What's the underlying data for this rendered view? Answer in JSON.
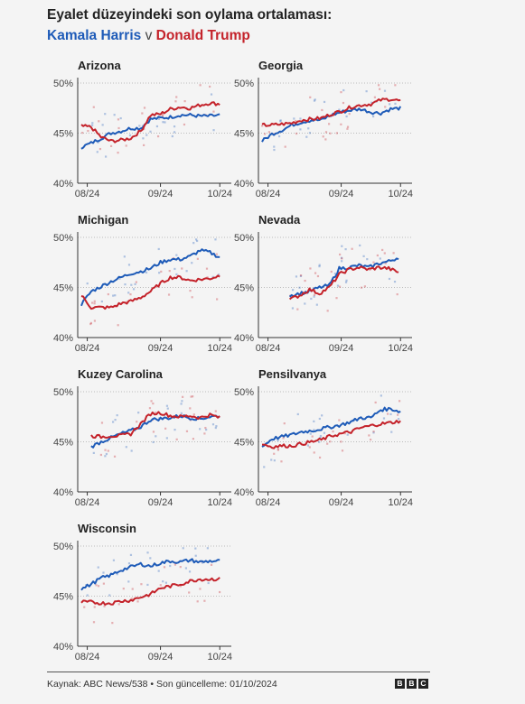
{
  "header": {
    "title": "Eyalet düzeyindeki son oylama ortalaması:",
    "harris_label": "Kamala Harris",
    "versus": "v",
    "trump_label": "Donald Trump"
  },
  "colors": {
    "harris": "#1e5bb8",
    "trump": "#c4222a"
  },
  "footer": {
    "source": "Kaynak: ABC News/538 • Son güncelleme: 01/10/2024",
    "logo_letters": [
      "B",
      "B",
      "C"
    ]
  },
  "chart_data": [
    {
      "type": "line",
      "title": "Arizona",
      "ylim": [
        40,
        50
      ],
      "yticks": [
        "50%",
        "45%",
        "40%"
      ],
      "xticks": [
        "08/24",
        "09/24",
        "10/24"
      ],
      "series": [
        {
          "name": "Kamala Harris",
          "x": [
            0,
            5,
            10,
            15,
            20,
            25,
            30,
            35,
            40,
            45,
            50,
            55,
            60,
            65,
            70
          ],
          "y": [
            43.6,
            44.0,
            44.5,
            45.0,
            45.2,
            45.5,
            45.5,
            46.4,
            46.5,
            46.6,
            46.8,
            46.8,
            46.7,
            46.7,
            46.8
          ]
        },
        {
          "name": "Donald Trump",
          "x": [
            0,
            5,
            10,
            15,
            20,
            25,
            30,
            35,
            40,
            45,
            50,
            55,
            60,
            65,
            70
          ],
          "y": [
            45.7,
            45.6,
            44.6,
            44.2,
            44.3,
            44.5,
            45.2,
            46.8,
            46.9,
            47.4,
            47.6,
            47.5,
            47.8,
            48.0,
            47.9
          ]
        }
      ]
    },
    {
      "type": "line",
      "title": "Georgia",
      "ylim": [
        40,
        50
      ],
      "yticks": [
        "50%",
        "45%",
        "40%"
      ],
      "xticks": [
        "08/24",
        "09/24",
        "10/24"
      ],
      "series": [
        {
          "name": "Kamala Harris",
          "x": [
            0,
            5,
            10,
            15,
            20,
            25,
            30,
            35,
            40,
            45,
            50,
            55,
            60,
            65,
            70
          ],
          "y": [
            44.2,
            44.9,
            45.3,
            45.8,
            46.1,
            46.3,
            46.3,
            46.8,
            47.1,
            47.3,
            47.4,
            47.1,
            47.0,
            47.4,
            47.5
          ]
        },
        {
          "name": "Donald Trump",
          "x": [
            0,
            5,
            10,
            15,
            20,
            25,
            30,
            35,
            40,
            45,
            50,
            55,
            60,
            65,
            70
          ],
          "y": [
            45.8,
            45.8,
            45.9,
            46.0,
            46.3,
            46.4,
            46.5,
            46.9,
            47.2,
            47.6,
            47.8,
            47.9,
            48.3,
            48.4,
            48.2
          ]
        }
      ]
    },
    {
      "type": "line",
      "title": "Michigan",
      "ylim": [
        40,
        50
      ],
      "yticks": [
        "50%",
        "45%",
        "40%"
      ],
      "xticks": [
        "08/24",
        "09/24",
        "10/24"
      ],
      "series": [
        {
          "name": "Kamala Harris",
          "x": [
            0,
            5,
            10,
            15,
            20,
            25,
            30,
            35,
            40,
            45,
            50,
            55,
            60,
            65,
            70
          ],
          "y": [
            43.3,
            44.6,
            45.1,
            45.6,
            46.0,
            46.4,
            46.6,
            46.9,
            47.5,
            47.8,
            47.8,
            48.1,
            48.7,
            48.5,
            48.0
          ]
        },
        {
          "name": "Donald Trump",
          "x": [
            0,
            5,
            10,
            15,
            20,
            25,
            30,
            35,
            40,
            45,
            50,
            55,
            60,
            65,
            70
          ],
          "y": [
            44.2,
            43.0,
            43.0,
            43.0,
            43.4,
            43.6,
            44.0,
            44.6,
            45.4,
            46.0,
            46.0,
            45.7,
            45.8,
            45.9,
            46.2
          ]
        }
      ]
    },
    {
      "type": "line",
      "title": "Nevada",
      "ylim": [
        40,
        50
      ],
      "yticks": [
        "50%",
        "45%",
        "40%"
      ],
      "xticks": [
        "08/24",
        "09/24",
        "10/24"
      ],
      "series": [
        {
          "name": "Kamala Harris",
          "x": [
            14,
            19,
            24,
            29,
            34,
            39,
            44,
            49,
            54,
            59,
            64,
            69
          ],
          "y": [
            44.2,
            44.4,
            44.6,
            45.0,
            45.2,
            46.9,
            47.0,
            47.2,
            47.0,
            47.4,
            47.6,
            48.0
          ]
        },
        {
          "name": "Donald Trump",
          "x": [
            14,
            19,
            24,
            29,
            34,
            39,
            44,
            49,
            54,
            59,
            64,
            69
          ],
          "y": [
            43.8,
            44.2,
            44.8,
            44.4,
            45.0,
            46.3,
            46.8,
            47.0,
            46.8,
            47.0,
            46.9,
            46.5
          ]
        }
      ]
    },
    {
      "type": "line",
      "title": "Kuzey Carolina",
      "ylim": [
        40,
        50
      ],
      "yticks": [
        "50%",
        "45%",
        "40%"
      ],
      "xticks": [
        "08/24",
        "09/24",
        "10/24"
      ],
      "series": [
        {
          "name": "Kamala Harris",
          "x": [
            5,
            10,
            15,
            20,
            25,
            30,
            35,
            40,
            45,
            50,
            55,
            60,
            65,
            70
          ],
          "y": [
            44.5,
            45.0,
            45.4,
            45.8,
            46.1,
            46.5,
            47.2,
            47.3,
            47.4,
            47.6,
            47.4,
            47.3,
            47.5,
            47.6
          ]
        },
        {
          "name": "Donald Trump",
          "x": [
            5,
            10,
            15,
            20,
            25,
            30,
            35,
            40,
            45,
            50,
            55,
            60,
            65,
            70
          ],
          "y": [
            45.6,
            45.5,
            45.6,
            45.6,
            45.8,
            46.8,
            47.8,
            47.9,
            47.6,
            47.5,
            47.6,
            47.4,
            47.7,
            47.4
          ]
        }
      ]
    },
    {
      "type": "line",
      "title": "Pensilvanya",
      "ylim": [
        40,
        50
      ],
      "yticks": [
        "50%",
        "45%",
        "40%"
      ],
      "xticks": [
        "08/24",
        "09/24",
        "10/24"
      ],
      "series": [
        {
          "name": "Kamala Harris",
          "x": [
            0,
            5,
            10,
            15,
            20,
            25,
            30,
            35,
            40,
            45,
            50,
            55,
            60,
            65,
            70
          ],
          "y": [
            44.5,
            45.3,
            45.5,
            45.7,
            46.0,
            46.1,
            46.3,
            46.5,
            46.7,
            47.0,
            47.4,
            47.4,
            48.2,
            48.3,
            48.0
          ]
        },
        {
          "name": "Donald Trump",
          "x": [
            0,
            5,
            10,
            15,
            20,
            25,
            30,
            35,
            40,
            45,
            50,
            55,
            60,
            65,
            70
          ],
          "y": [
            44.8,
            44.5,
            44.6,
            44.6,
            44.8,
            45.0,
            45.2,
            45.6,
            45.8,
            46.0,
            46.4,
            46.6,
            46.8,
            46.9,
            47.1
          ]
        }
      ]
    },
    {
      "type": "line",
      "title": "Wisconsin",
      "ylim": [
        40,
        50
      ],
      "yticks": [
        "50%",
        "45%",
        "40%"
      ],
      "xticks": [
        "08/24",
        "09/24",
        "10/24"
      ],
      "series": [
        {
          "name": "Kamala Harris",
          "x": [
            0,
            5,
            10,
            15,
            20,
            25,
            30,
            35,
            40,
            45,
            50,
            55,
            60,
            65,
            70
          ],
          "y": [
            45.7,
            46.2,
            46.8,
            47.1,
            47.6,
            47.9,
            48.2,
            48.0,
            48.3,
            48.5,
            48.4,
            48.6,
            48.4,
            48.5,
            48.5
          ]
        },
        {
          "name": "Donald Trump",
          "x": [
            0,
            5,
            10,
            15,
            20,
            25,
            30,
            35,
            40,
            45,
            50,
            55,
            60,
            65,
            70
          ],
          "y": [
            44.4,
            44.4,
            44.3,
            44.3,
            44.5,
            44.6,
            44.9,
            45.2,
            45.8,
            46.0,
            46.2,
            46.5,
            46.7,
            46.7,
            46.7
          ]
        }
      ]
    }
  ]
}
